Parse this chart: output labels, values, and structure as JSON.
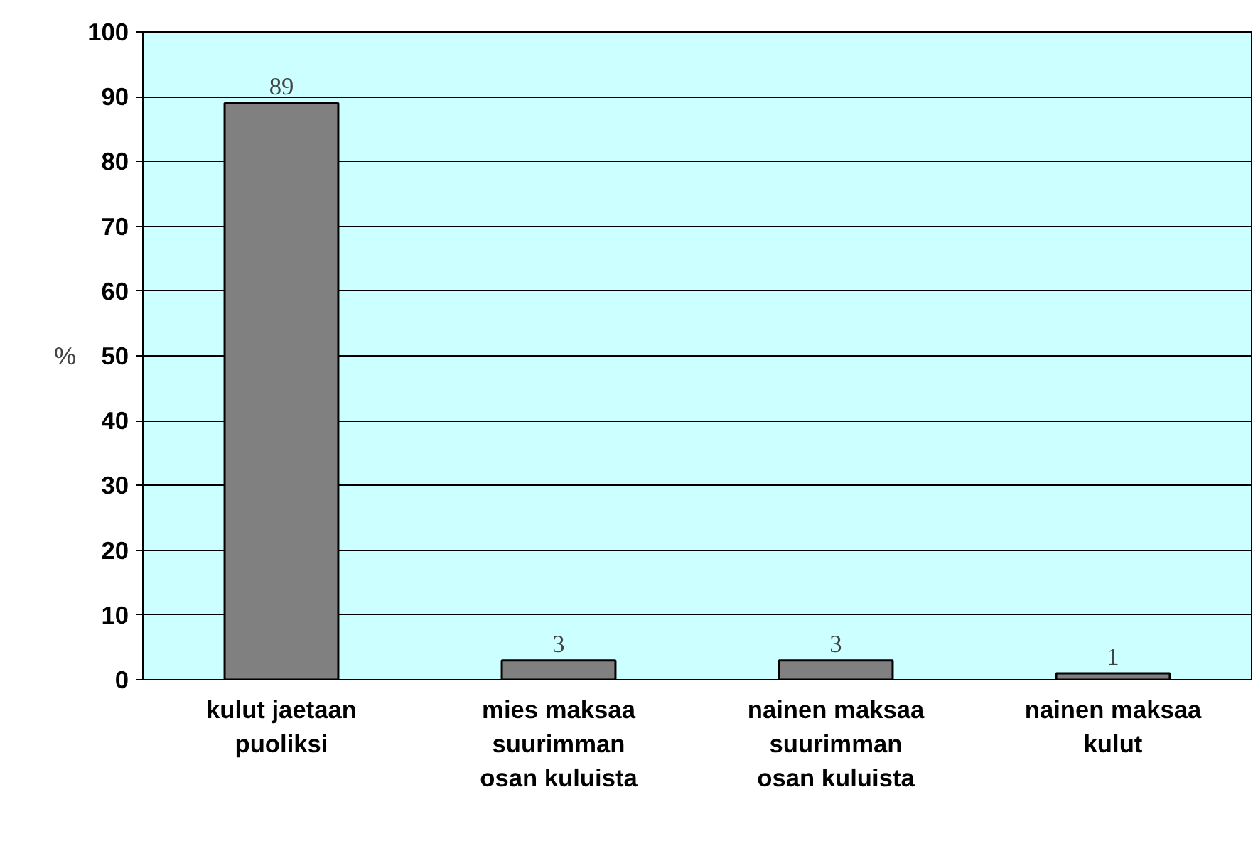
{
  "chart_data": {
    "type": "bar",
    "categories": [
      "kulut jaetaan puoliksi",
      "mies maksaa suurimman osan kuluista",
      "nainen maksaa suurimman osan kuluista",
      "nainen maksaa kulut"
    ],
    "values": [
      89,
      3,
      3,
      1
    ],
    "color": "#808080",
    "ylabel": "%",
    "ylim": [
      0,
      100
    ],
    "yticks": [
      0,
      10,
      20,
      30,
      40,
      50,
      60,
      70,
      80,
      90,
      100
    ],
    "grid": "y",
    "data_labels": true
  }
}
